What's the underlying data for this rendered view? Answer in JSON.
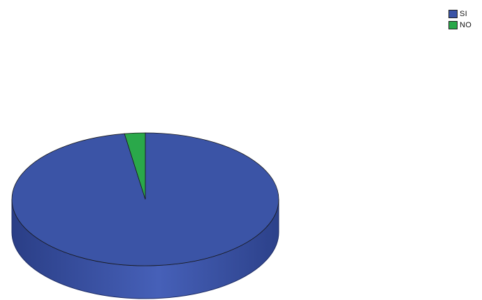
{
  "chart_data": {
    "type": "pie",
    "style": "3d",
    "categories": [
      "SI",
      "NO"
    ],
    "values": [
      97.5,
      2.5
    ],
    "colors": [
      "#3b54a6",
      "#2aa84a"
    ],
    "legend_position": "top-right",
    "title": ""
  }
}
